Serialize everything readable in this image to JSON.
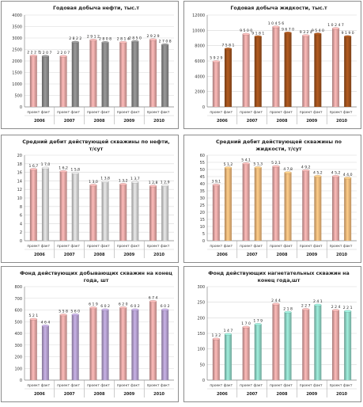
{
  "chart_data": [
    {
      "type": "bar",
      "title": "Годовая добыча нефти, тыс.т",
      "categories": [
        "2006",
        "2007",
        "2008",
        "2009",
        "2010"
      ],
      "bar_labels": [
        "проект",
        "факт"
      ],
      "ylim": [
        0,
        4000
      ],
      "yticks": [
        0,
        500,
        1000,
        1500,
        2000,
        2500,
        3000,
        3500,
        4000
      ],
      "series": [
        {
          "name": "проект",
          "values": [
            2227,
            2207,
            2912,
            2814,
            2929
          ],
          "labels": [
            "2 2 2 7",
            "2 2 0 7",
            "2 9 1 2",
            "2 8 1 4",
            "2 9 2 9"
          ]
        },
        {
          "name": "факт",
          "values": [
            2207,
            2822,
            2808,
            2850,
            2708
          ],
          "labels": [
            "2 2 0 7",
            "2 8 2 2",
            "2 8 0 8",
            "2 8 5 0",
            "2 7 0 8"
          ]
        }
      ],
      "colors": {
        "plan": "#e6a8a6",
        "fact": "#8a8a8a"
      }
    },
    {
      "type": "bar",
      "title": "Годовая добыча жидкости, тыс.т",
      "categories": [
        "2006",
        "2007",
        "2008",
        "2009",
        "2010"
      ],
      "bar_labels": [
        "проект",
        "факт"
      ],
      "ylim": [
        0,
        12000
      ],
      "yticks": [
        0,
        2000,
        4000,
        6000,
        8000,
        10000,
        12000
      ],
      "series": [
        {
          "name": "проект",
          "values": [
            5929,
            9500,
            10456,
            9324,
            10247
          ],
          "labels": [
            "5 9 2 9",
            "9 5 0 0",
            "1 0 4 5 6",
            "9 3 2 4",
            "1 0 2 4 7"
          ]
        },
        {
          "name": "факт",
          "values": [
            7581,
            9181,
            9670,
            9540,
            9190
          ],
          "labels": [
            "7 5 8 1",
            "9 1 8 1",
            "9 6 7 0",
            "9 5 4 0",
            "9 1 9 0"
          ]
        }
      ],
      "colors": {
        "plan": "#e6a8a6",
        "fact": "#a0521d"
      }
    },
    {
      "type": "bar",
      "title": "Средний дебит действующей скважины по нефти, т/сут",
      "categories": [
        "2006",
        "2007",
        "2008",
        "2009",
        "2010"
      ],
      "bar_labels": [
        "проект",
        "факт"
      ],
      "ylim": [
        0,
        20
      ],
      "yticks": [
        0,
        2,
        4,
        6,
        8,
        10,
        12,
        14,
        16,
        18,
        20
      ],
      "series": [
        {
          "name": "проект",
          "values": [
            16.7,
            16.2,
            13.0,
            13.2,
            12.8
          ],
          "labels": [
            "1 6,7",
            "1 6,2",
            "1 3,0",
            "1 3,2",
            "1 2,8"
          ]
        },
        {
          "name": "факт",
          "values": [
            17.0,
            15.8,
            13.8,
            13.7,
            12.9
          ],
          "labels": [
            "1 7,0",
            "1 5,8",
            "1 3,8",
            "1 3,7",
            "1 2,9"
          ]
        }
      ],
      "colors": {
        "plan": "#e6a8a6",
        "fact": "#d2d2d2"
      }
    },
    {
      "type": "bar",
      "title": "Средний дебит действующей скважины по жидкости, т/сут",
      "categories": [
        "2006",
        "2007",
        "2008",
        "2009",
        "2010"
      ],
      "bar_labels": [
        "проект",
        "факт"
      ],
      "ylim": [
        0,
        60
      ],
      "yticks": [
        0,
        5,
        10,
        15,
        20,
        25,
        30,
        35,
        40,
        45,
        50,
        55,
        60
      ],
      "series": [
        {
          "name": "проект",
          "values": [
            39.1,
            54.1,
            52.1,
            49.2,
            45.2
          ],
          "labels": [
            "3 9,1",
            "5 4,1",
            "5 2,1",
            "4 9,2",
            "4 5,2"
          ]
        },
        {
          "name": "факт",
          "values": [
            51.2,
            51.3,
            47.8,
            45.2,
            44.0
          ],
          "labels": [
            "5 1,2",
            "5 1,3",
            "4 7,8",
            "4 5,2",
            "4 4,0"
          ]
        }
      ],
      "colors": {
        "plan": "#e6a8a6",
        "fact": "#f2b87a"
      }
    },
    {
      "type": "bar",
      "title": "Фонд действующих добывающих скважин на конец года, шт",
      "categories": [
        "2006",
        "2007",
        "2008",
        "2009",
        "2010"
      ],
      "bar_labels": [
        "проект",
        "факт"
      ],
      "ylim": [
        0,
        800
      ],
      "yticks": [
        0,
        100,
        200,
        300,
        400,
        500,
        600,
        700,
        800
      ],
      "series": [
        {
          "name": "проект",
          "values": [
            521,
            558,
            619,
            620,
            674
          ],
          "labels": [
            "5 2 1",
            "5 5 8",
            "6 1 9",
            "6 2 0",
            "6 7 4"
          ]
        },
        {
          "name": "факт",
          "values": [
            464,
            560,
            602,
            602,
            602
          ],
          "labels": [
            "4 6 4",
            "5 6 0",
            "6 0 2",
            "6 0 2",
            "6 0 2"
          ]
        }
      ],
      "colors": {
        "plan": "#e6a8a6",
        "fact": "#b4a0cf"
      }
    },
    {
      "type": "bar",
      "title": "Фонд действующих нагнетательных скважин на конец года,шт",
      "categories": [
        "2006",
        "2007",
        "2008",
        "2009",
        "2010"
      ],
      "bar_labels": [
        "проект",
        "факт"
      ],
      "ylim": [
        0,
        300
      ],
      "yticks": [
        0,
        50,
        100,
        150,
        200,
        250,
        300
      ],
      "series": [
        {
          "name": "проект",
          "values": [
            132,
            170,
            244,
            227,
            224
          ],
          "labels": [
            "1 3 2",
            "1 7 0",
            "2 4 4",
            "2 2 7",
            "2 2 4"
          ]
        },
        {
          "name": "факт",
          "values": [
            147,
            179,
            218,
            241,
            221
          ],
          "labels": [
            "1 4 7",
            "1 7 9",
            "2 1 8",
            "2 4 1",
            "2 2 1"
          ]
        }
      ],
      "colors": {
        "plan": "#e6a8a6",
        "fact": "#8fd6c6"
      }
    }
  ]
}
